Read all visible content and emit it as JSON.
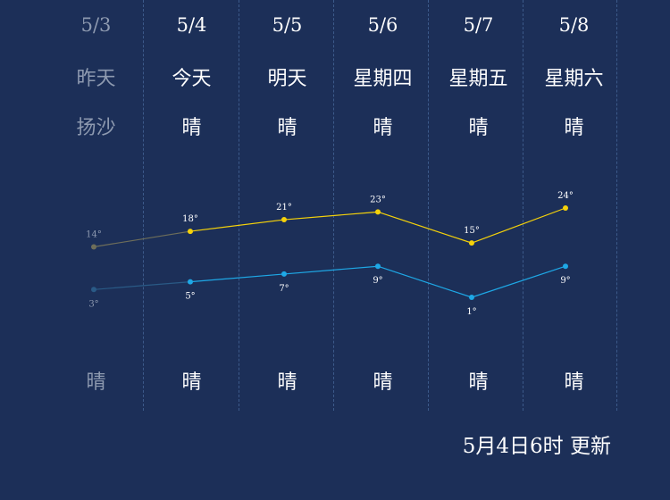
{
  "days": [
    {
      "date": "5/3",
      "name": "昨天",
      "day_weather": "扬沙",
      "night_weather": "晴",
      "past": true
    },
    {
      "date": "5/4",
      "name": "今天",
      "day_weather": "晴",
      "night_weather": "晴",
      "past": false
    },
    {
      "date": "5/5",
      "name": "明天",
      "day_weather": "晴",
      "night_weather": "晴",
      "past": false
    },
    {
      "date": "5/6",
      "name": "星期四",
      "day_weather": "晴",
      "night_weather": "晴",
      "past": false
    },
    {
      "date": "5/7",
      "name": "星期五",
      "day_weather": "晴",
      "night_weather": "晴",
      "past": false
    },
    {
      "date": "5/8",
      "name": "星期六",
      "day_weather": "晴",
      "night_weather": "晴",
      "past": false
    }
  ],
  "chart_data": {
    "type": "line",
    "categories": [
      "5/3",
      "5/4",
      "5/5",
      "5/6",
      "5/7",
      "5/8"
    ],
    "series": [
      {
        "values": [
          14,
          18,
          21,
          23,
          15,
          24
        ],
        "labels": [
          "14°",
          "18°",
          "21°",
          "23°",
          "15°",
          "24°"
        ],
        "color": "#f5d20a",
        "past_color": "#6e6e5a"
      },
      {
        "values": [
          3,
          5,
          7,
          9,
          1,
          9
        ],
        "labels": [
          "3°",
          "5°",
          "7°",
          "9°",
          "1°",
          "9°"
        ],
        "color": "#1ea8e6",
        "past_color": "#2a5a86"
      }
    ]
  },
  "footer": {
    "updated": "5月4日6时 更新"
  }
}
